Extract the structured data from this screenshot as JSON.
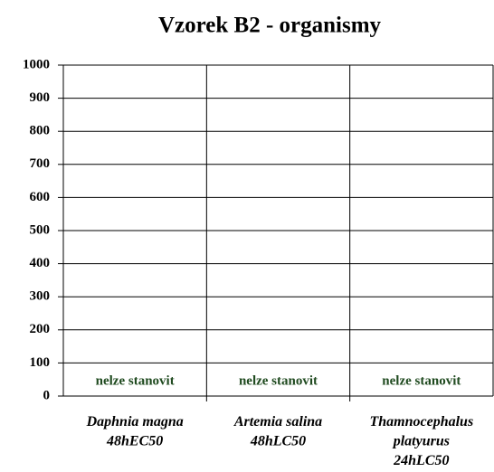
{
  "chart_data": {
    "type": "bar",
    "title": "Vzorek B2 - organismy",
    "categories": [
      "Daphnia magna\n48hEC50",
      "Artemia salina\n48hLC50",
      "Thamnocephalus\nplatyurus\n24hLC50"
    ],
    "values": [
      null,
      null,
      null
    ],
    "value_labels": [
      "nelze stanovit",
      "nelze stanovit",
      "nelze stanovit"
    ],
    "color": "#1f4a1f",
    "ylim": [
      0,
      1000
    ],
    "yticks": [
      0,
      100,
      200,
      300,
      400,
      500,
      600,
      700,
      800,
      900,
      1000
    ],
    "grid": true
  }
}
